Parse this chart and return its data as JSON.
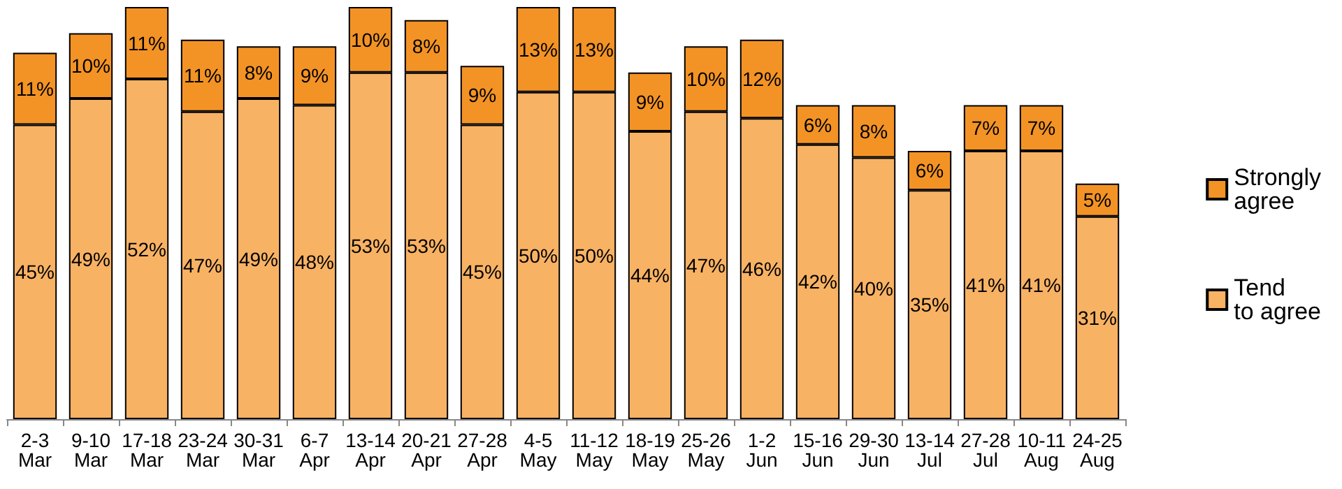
{
  "chart_data": {
    "type": "bar",
    "stacked": true,
    "legend": "right",
    "categories": [
      "2-3 Mar",
      "9-10 Mar",
      "17-18 Mar",
      "23-24 Mar",
      "30-31 Mar",
      "6-7 Apr",
      "13-14 Apr",
      "20-21 Apr",
      "27-28 Apr",
      "4-5 May",
      "11-12 May",
      "18-19 May",
      "25-26 May",
      "1-2 Jun",
      "15-16 Jun",
      "29-30 Jun",
      "13-14 Jul",
      "27-28 Jul",
      "10-11 Aug",
      "24-25 Aug"
    ],
    "series": [
      {
        "name": "Tend to agree",
        "color": "#f8b264",
        "values": [
          45,
          49,
          52,
          47,
          49,
          48,
          53,
          53,
          45,
          50,
          50,
          44,
          47,
          46,
          42,
          40,
          35,
          41,
          41,
          31
        ],
        "value_labels": [
          "45%",
          "49%",
          "52%",
          "47%",
          "49%",
          "48%",
          "53%",
          "53%",
          "45%",
          "50%",
          "50%",
          "44%",
          "47%",
          "46%",
          "42%",
          "40%",
          "35%",
          "41%",
          "41%",
          "31%"
        ]
      },
      {
        "name": "Strongly agree",
        "color": "#f39325",
        "values": [
          11,
          10,
          11,
          11,
          8,
          9,
          10,
          8,
          9,
          13,
          13,
          9,
          10,
          12,
          6,
          8,
          6,
          7,
          7,
          5
        ],
        "value_labels": [
          "11%",
          "10%",
          "11%",
          "11%",
          "8%",
          "9%",
          "10%",
          "8%",
          "9%",
          "13%",
          "13%",
          "9%",
          "10%",
          "12%",
          "6%",
          "8%",
          "6%",
          "7%",
          "7%",
          "5%"
        ]
      }
    ]
  }
}
